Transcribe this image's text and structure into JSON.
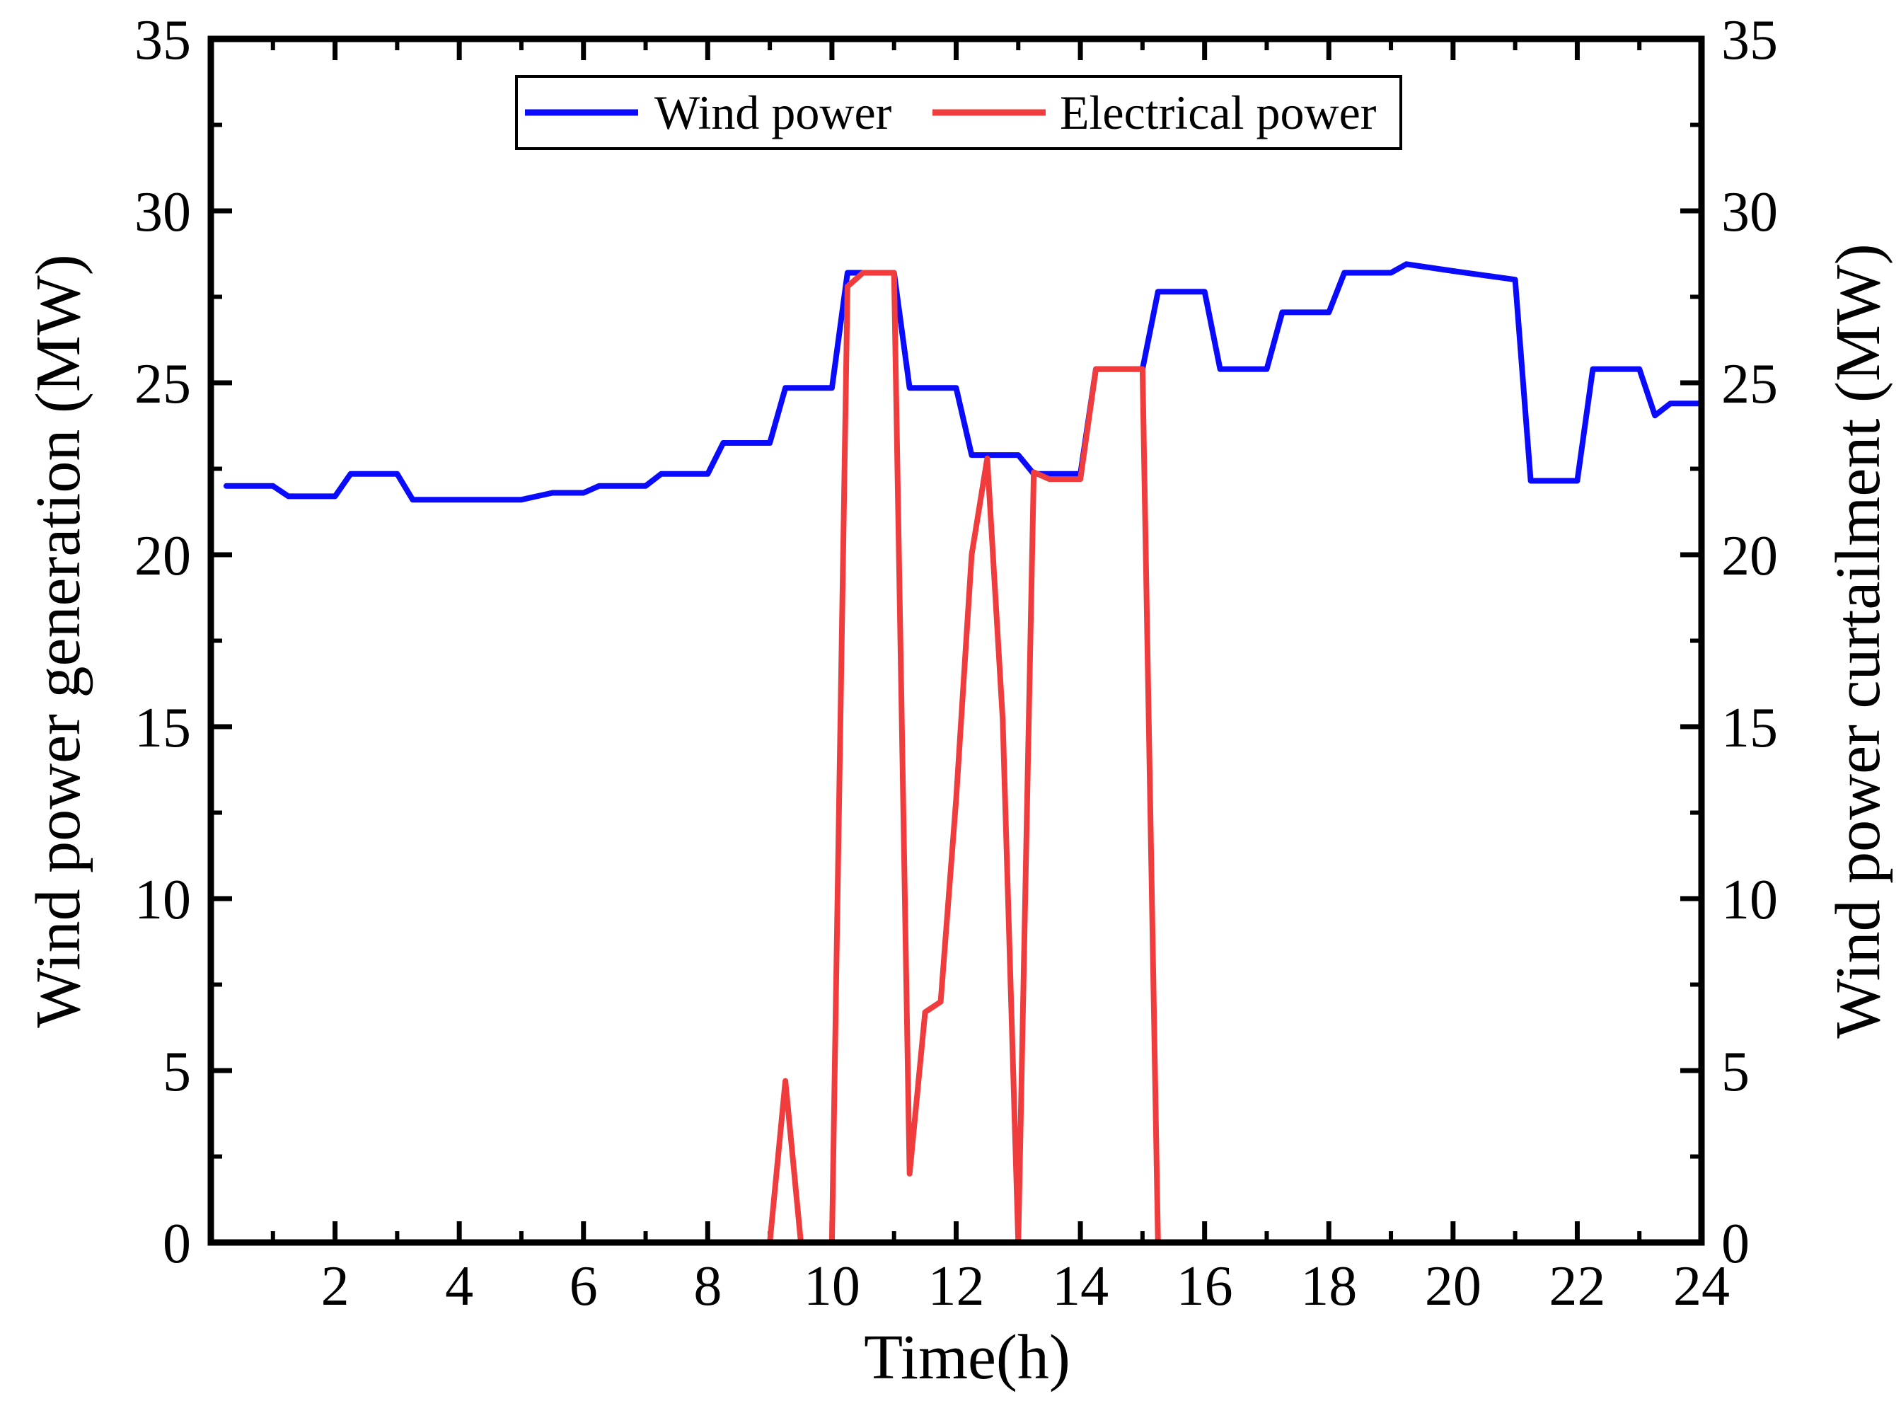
{
  "chart_data": {
    "type": "line",
    "title": "",
    "xlabel": "Time(h)",
    "ylabel_left": "Wind power generation (MW)",
    "ylabel_right": "Wind power curtailment (MW)",
    "xlim": [
      0,
      24
    ],
    "ylim": [
      0,
      35
    ],
    "ylim_right": [
      0,
      35
    ],
    "x_ticks": [
      2,
      4,
      6,
      8,
      10,
      12,
      14,
      16,
      18,
      20,
      22,
      24
    ],
    "x_tick_labels": [
      "2",
      "4",
      "6",
      "8",
      "10",
      "12",
      "14",
      "16",
      "18",
      "20",
      "22",
      "24"
    ],
    "y_ticks": [
      0,
      5,
      10,
      15,
      20,
      25,
      30,
      35
    ],
    "y_tick_labels": [
      "0",
      "5",
      "10",
      "15",
      "20",
      "25",
      "30",
      "35"
    ],
    "legend_position": "top-center",
    "grid": false,
    "series": [
      {
        "name": "Wind power",
        "color": "#0a0aff",
        "axis": "left",
        "x": [
          0.25,
          1.0,
          1.25,
          2.0,
          2.25,
          3.0,
          3.25,
          4.0,
          4.25,
          5.0,
          5.5,
          6.0,
          6.25,
          7.0,
          7.25,
          8.0,
          8.25,
          9.0,
          9.25,
          10.0,
          10.25,
          10.5,
          11.0,
          11.25,
          12.0,
          12.25,
          13.0,
          13.25,
          14.0,
          14.25,
          15.0,
          15.25,
          16.0,
          16.25,
          17.0,
          17.25,
          18.0,
          18.25,
          19.0,
          19.25,
          20.0,
          21.0,
          21.25,
          22.0,
          22.25,
          23.0,
          23.25,
          23.5,
          24.0
        ],
        "values": [
          22.0,
          22.0,
          21.7,
          21.7,
          22.35,
          22.35,
          21.6,
          21.6,
          21.6,
          21.6,
          21.8,
          21.8,
          22.0,
          22.0,
          22.35,
          22.35,
          23.25,
          23.25,
          24.85,
          24.85,
          28.2,
          28.2,
          28.2,
          24.85,
          24.85,
          22.9,
          22.9,
          22.35,
          22.35,
          25.4,
          25.4,
          27.65,
          27.65,
          25.4,
          25.4,
          27.05,
          27.05,
          28.2,
          28.2,
          28.45,
          28.25,
          28.0,
          22.15,
          22.15,
          25.4,
          25.4,
          24.05,
          24.4,
          24.4
        ]
      },
      {
        "name": "Electrical power",
        "color": "#f03c3c",
        "axis": "right",
        "x": [
          9.0,
          9.25,
          9.5,
          10.0,
          10.25,
          10.5,
          11.0,
          11.25,
          11.5,
          11.75,
          12.0,
          12.25,
          12.5,
          12.75,
          13.0,
          13.25,
          13.5,
          14.0,
          14.25,
          15.0,
          15.25
        ],
        "values": [
          0.0,
          4.7,
          0.0,
          0.0,
          27.8,
          28.2,
          28.2,
          2.0,
          6.7,
          7.0,
          12.9,
          20.0,
          22.8,
          15.2,
          0.0,
          22.4,
          22.2,
          22.2,
          25.4,
          25.4,
          0.0
        ]
      }
    ]
  }
}
